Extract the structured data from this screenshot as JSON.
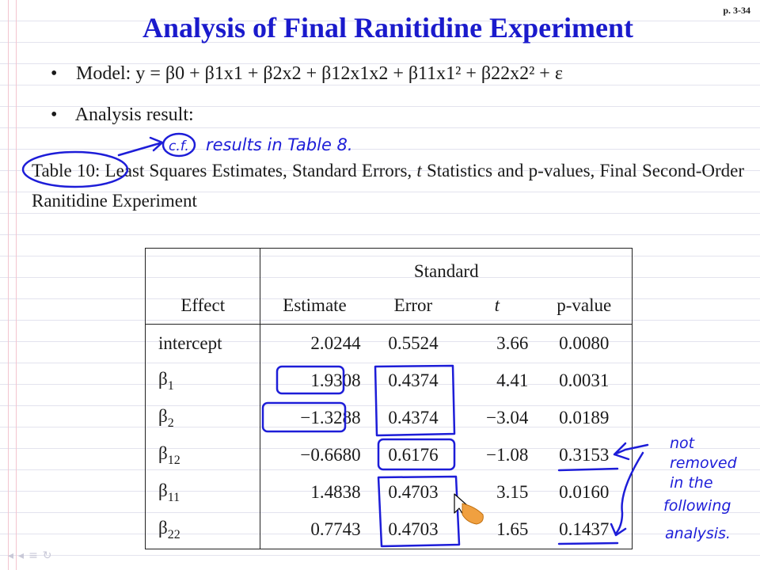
{
  "page_number": "p. 3-34",
  "title": "Analysis of Final Ranitidine Experiment",
  "bullets": {
    "model_label": "Model:",
    "model_equation": "y = β0 + β1x1 + β2x2 + β12x1x2 + β11x1² + β22x2² + ε",
    "analysis_label": "Analysis result:"
  },
  "caption": {
    "table_label": "Table 10:",
    "text_before_t": "Least Squares Estimates, Standard Errors,",
    "t_symbol": "t",
    "text_after_t": "Statistics and p-values, Final Second-Order Ranitidine Experiment"
  },
  "table": {
    "header_top": "Standard",
    "headers": [
      "Effect",
      "Estimate",
      "Error",
      "t",
      "p-value"
    ],
    "rows": [
      {
        "effect": "intercept",
        "estimate": "2.0244",
        "error": "0.5524",
        "t": "3.66",
        "p": "0.0080"
      },
      {
        "effect_base": "β",
        "effect_sub": "1",
        "estimate": "1.9308",
        "error": "0.4374",
        "t": "4.41",
        "p": "0.0031"
      },
      {
        "effect_base": "β",
        "effect_sub": "2",
        "estimate": "−1.3288",
        "error": "0.4374",
        "t": "−3.04",
        "p": "0.0189"
      },
      {
        "effect_base": "β",
        "effect_sub": "12",
        "estimate": "−0.6680",
        "error": "0.6176",
        "t": "−1.08",
        "p": "0.3153"
      },
      {
        "effect_base": "β",
        "effect_sub": "11",
        "estimate": "1.4838",
        "error": "0.4703",
        "t": "3.15",
        "p": "0.0160"
      },
      {
        "effect_base": "β",
        "effect_sub": "22",
        "estimate": "0.7743",
        "error": "0.4703",
        "t": "1.65",
        "p": "0.1437"
      }
    ]
  },
  "annotations": {
    "cf_label": "c.f.",
    "cf_note": "results in Table 8.",
    "side_note": [
      "not",
      "removed",
      "in the",
      "following",
      "analysis."
    ]
  },
  "colors": {
    "title": "#1a1acc",
    "ink": "#1d1dd8"
  }
}
